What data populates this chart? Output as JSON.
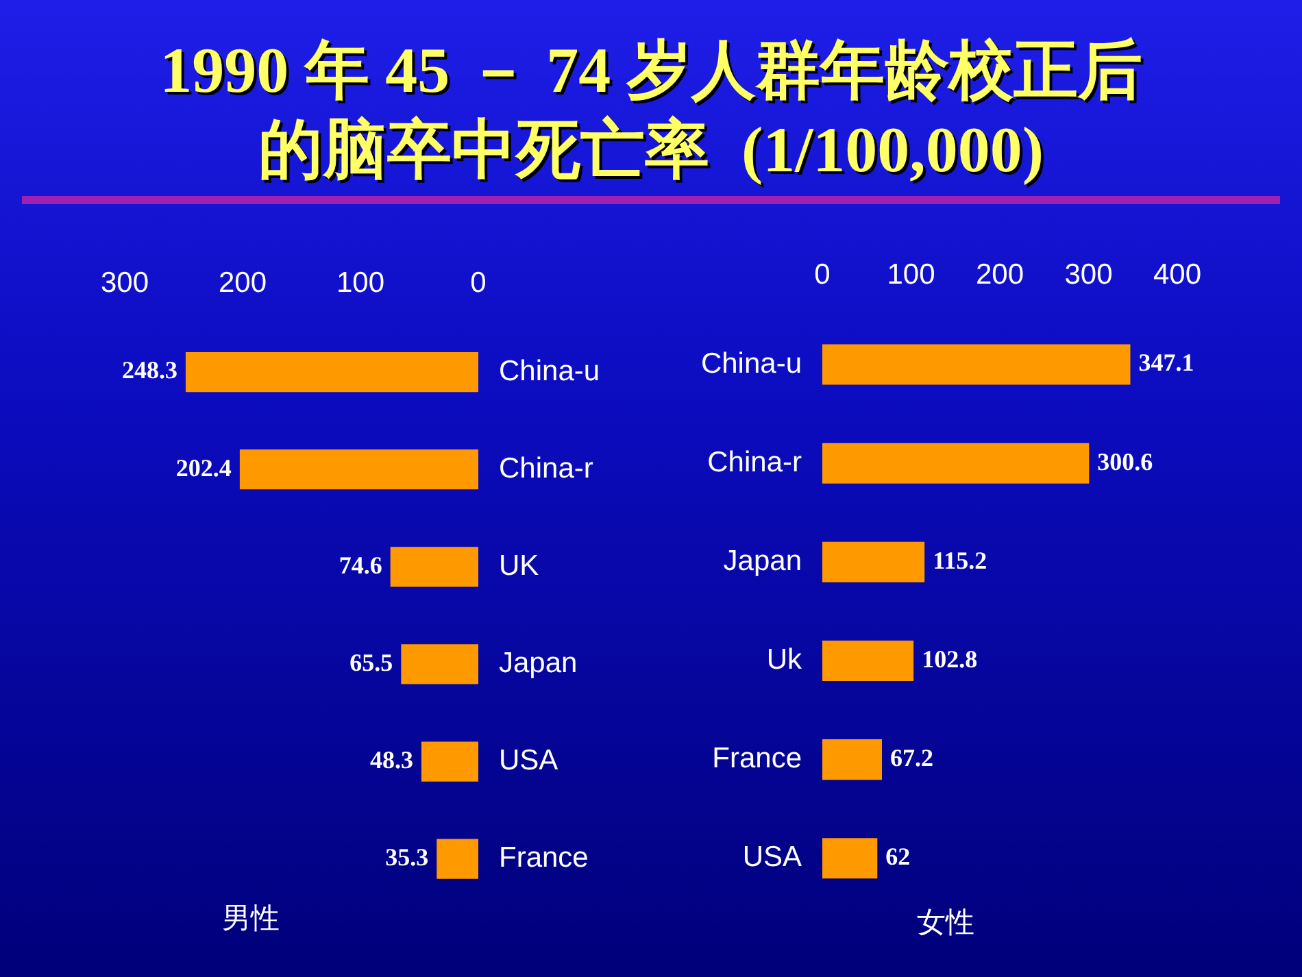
{
  "chart_data": [
    {
      "type": "bar",
      "orientation": "horizontal",
      "title": "1990 年 45 － 74 岁人群年龄校正后的脑卒中死亡率  (1/100,000)",
      "xlabel": "男性",
      "categories": [
        "China-u",
        "China-r",
        "UK",
        "Japan",
        "USA",
        "France"
      ],
      "values": [
        248.3,
        202.4,
        74.6,
        65.5,
        48.3,
        35.3
      ],
      "color": "#ff9900",
      "xlim": [
        300,
        0
      ],
      "xticks": [
        300,
        200,
        100,
        0
      ],
      "grid": false,
      "data_labels": true
    },
    {
      "type": "bar",
      "orientation": "horizontal",
      "xlabel": "女性",
      "categories": [
        "China-u",
        "China-r",
        "Japan",
        "Uk",
        "France",
        "USA"
      ],
      "values": [
        347.1,
        300.6,
        115.2,
        102.8,
        67.2,
        62
      ],
      "color": "#ff9900",
      "xlim": [
        0,
        400
      ],
      "xticks": [
        0,
        100,
        200,
        300,
        400
      ],
      "grid": false,
      "data_labels": true
    }
  ]
}
